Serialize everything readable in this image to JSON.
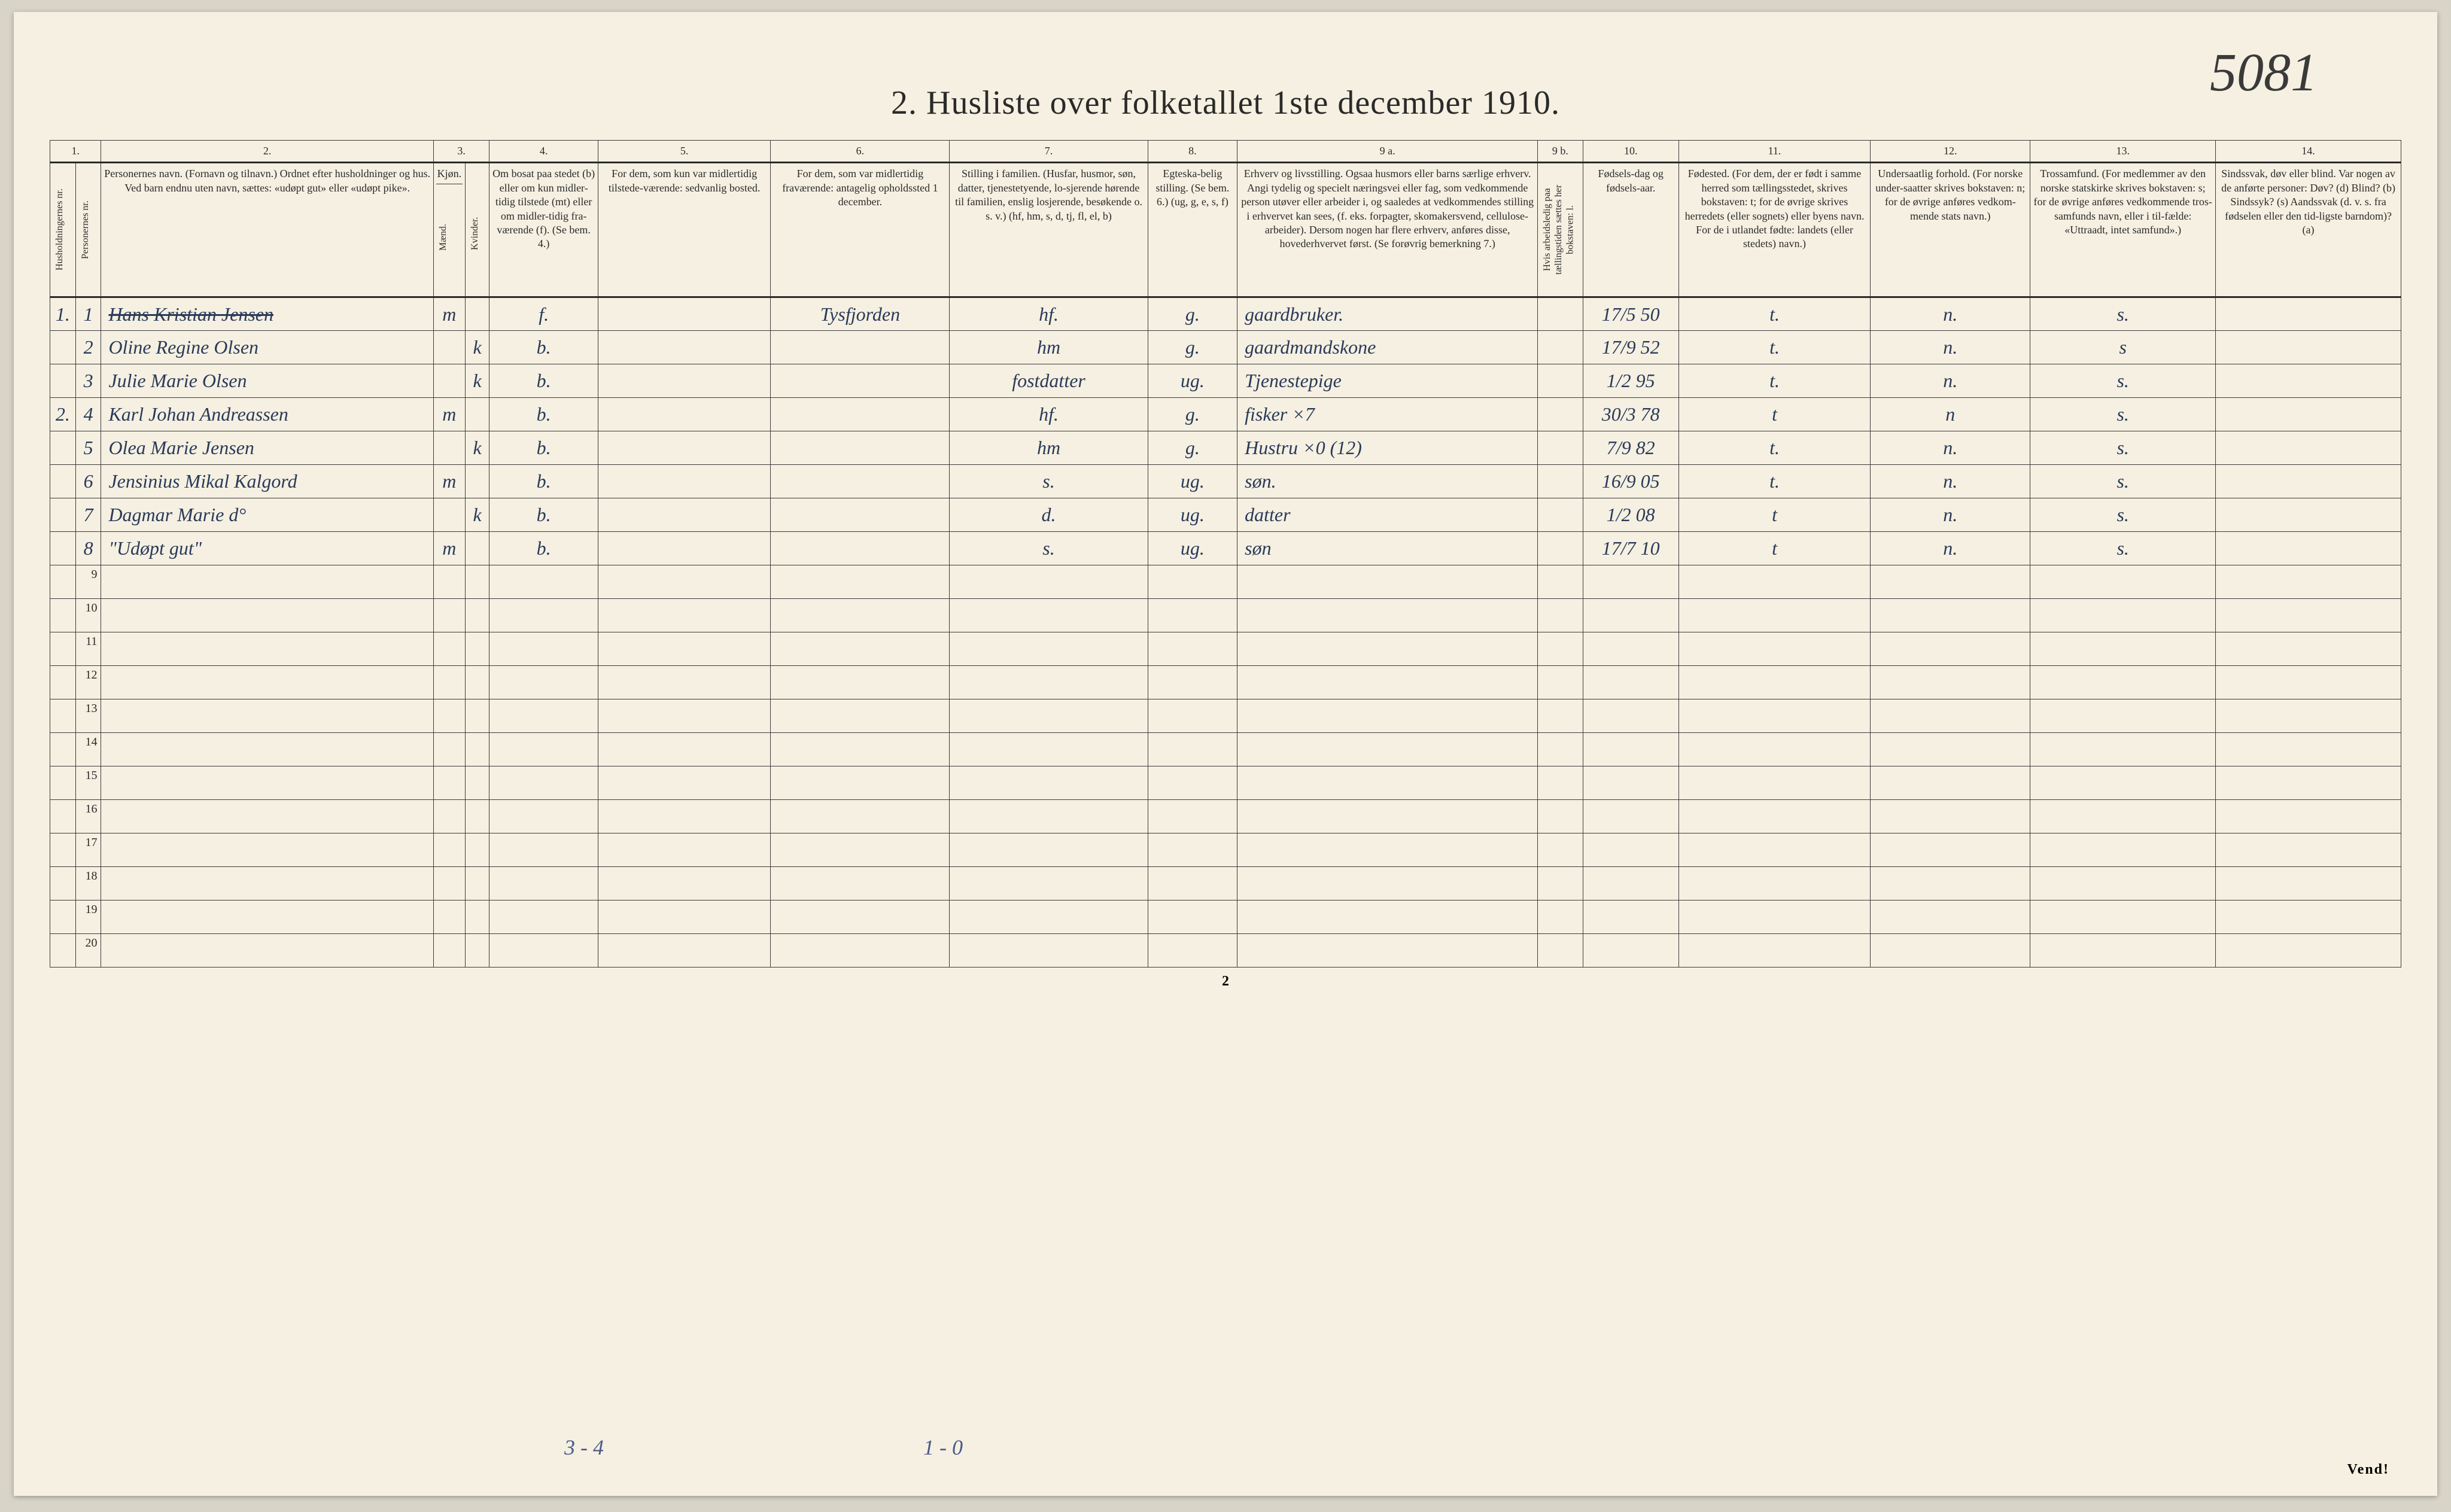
{
  "handwritten_corner": "5081",
  "title": "2.  Husliste over folketallet 1ste december 1910.",
  "col_numbers": [
    "1.",
    "2.",
    "3.",
    "4.",
    "5.",
    "6.",
    "7.",
    "8.",
    "9 a.",
    "9 b.",
    "10.",
    "11.",
    "12.",
    "13.",
    "14."
  ],
  "headers": {
    "c1a": "Husholdningernes nr.",
    "c1b": "Personernes nr.",
    "c2": "Personernes navn.\n(Fornavn og tilnavn.)\nOrdnet efter husholdninger og hus.\nVed barn endnu uten navn, sættes: «udøpt gut» eller «udøpt pike».",
    "c3a": "Mænd.",
    "c3b": "Kvinder.",
    "c3_top": "Kjøn.",
    "c4": "Om bosat paa stedet (b) eller om kun midler-tidig tilstede (mt) eller om midler-tidig fra-værende (f). (Se bem. 4.)",
    "c5": "For dem, som kun var midlertidig tilstede-værende:\nsedvanlig bosted.",
    "c6": "For dem, som var midlertidig fraværende:\nantagelig opholdssted 1 december.",
    "c7": "Stilling i familien.\n(Husfar, husmor, søn, datter, tjenestetyende, lo-sjerende hørende til familien, enslig losjerende, besøkende o. s. v.)\n(hf, hm, s, d, tj, fl, el, b)",
    "c8": "Egteska-belig stilling.\n(Se bem. 6.)\n(ug, g, e, s, f)",
    "c9a": "Erhverv og livsstilling.\nOgsaa husmors eller barns særlige erhverv. Angi tydelig og specielt næringsvei eller fag, som vedkommende person utøver eller arbeider i, og saaledes at vedkommendes stilling i erhvervet kan sees, (f. eks. forpagter, skomakersvend, cellulose-arbeider). Dersom nogen har flere erhverv, anføres disse, hovederhvervet først.\n(Se forøvrig bemerkning 7.)",
    "c9b": "Hvis arbeidsledig paa tællingstiden sættes her bokstaven: l.",
    "c10": "Fødsels-dag og fødsels-aar.",
    "c11": "Fødested.\n(For dem, der er født i samme herred som tællingsstedet, skrives bokstaven: t; for de øvrige skrives herredets (eller sognets) eller byens navn. For de i utlandet fødte: landets (eller stedets) navn.)",
    "c12": "Undersaatlig forhold.\n(For norske under-saatter skrives bokstaven: n; for de øvrige anføres vedkom-mende stats navn.)",
    "c13": "Trossamfund.\n(For medlemmer av den norske statskirke skrives bokstaven: s; for de øvrige anføres vedkommende tros-samfunds navn, eller i til-fælde: «Uttraadt, intet samfund».)",
    "c14": "Sindssvak, døv eller blind.\nVar nogen av de anførte personer:\nDøv? (d)\nBlind? (b)\nSindssyk? (s)\nAandssvak (d. v. s. fra fødselen eller den tid-ligste barndom)? (a)"
  },
  "rows": [
    {
      "hh": "1.",
      "pn": "1",
      "name": "Hans Kristian Jensen",
      "m": "m",
      "k": "",
      "res": "f.",
      "temp": "",
      "away": "Tysfjorden",
      "fam": "hf.",
      "marital": "g.",
      "occ": "gaardbruker.",
      "ledig": "",
      "birth": "17/5 50",
      "place": "t.",
      "nat": "n.",
      "faith": "s.",
      "disab": ""
    },
    {
      "hh": "",
      "pn": "2",
      "name": "Oline Regine Olsen",
      "m": "",
      "k": "k",
      "res": "b.",
      "temp": "",
      "away": "",
      "fam": "hm",
      "marital": "g.",
      "occ": "gaardmandskone",
      "ledig": "",
      "birth": "17/9 52",
      "place": "t.",
      "nat": "n.",
      "faith": "s",
      "disab": ""
    },
    {
      "hh": "",
      "pn": "3",
      "name": "Julie Marie Olsen",
      "m": "",
      "k": "k",
      "res": "b.",
      "temp": "",
      "away": "",
      "fam": "fostdatter",
      "marital": "ug.",
      "occ": "Tjenestepige",
      "ledig": "",
      "birth": "1/2 95",
      "place": "t.",
      "nat": "n.",
      "faith": "s.",
      "disab": ""
    },
    {
      "hh": "2.",
      "pn": "4",
      "name": "Karl Johan Andreassen",
      "m": "m",
      "k": "",
      "res": "b.",
      "temp": "",
      "away": "",
      "fam": "hf.",
      "marital": "g.",
      "occ": "fisker ×7",
      "ledig": "",
      "birth": "30/3 78",
      "place": "t",
      "nat": "n",
      "faith": "s.",
      "disab": ""
    },
    {
      "hh": "",
      "pn": "5",
      "name": "Olea Marie Jensen",
      "m": "",
      "k": "k",
      "res": "b.",
      "temp": "",
      "away": "",
      "fam": "hm",
      "marital": "g.",
      "occ": "Hustru ×0 (12)",
      "ledig": "",
      "birth": "7/9 82",
      "place": "t.",
      "nat": "n.",
      "faith": "s.",
      "disab": ""
    },
    {
      "hh": "",
      "pn": "6",
      "name": "Jensinius Mikal Kalgord",
      "m": "m",
      "k": "",
      "res": "b.",
      "temp": "",
      "away": "",
      "fam": "s.",
      "marital": "ug.",
      "occ": "søn.",
      "ledig": "",
      "birth": "16/9 05",
      "place": "t.",
      "nat": "n.",
      "faith": "s.",
      "disab": ""
    },
    {
      "hh": "",
      "pn": "7",
      "name": "Dagmar Marie  d°",
      "m": "",
      "k": "k",
      "res": "b.",
      "temp": "",
      "away": "",
      "fam": "d.",
      "marital": "ug.",
      "occ": "datter",
      "ledig": "",
      "birth": "1/2 08",
      "place": "t",
      "nat": "n.",
      "faith": "s.",
      "disab": ""
    },
    {
      "hh": "",
      "pn": "8",
      "name": "\"Udøpt gut\"",
      "m": "m",
      "k": "",
      "res": "b.",
      "temp": "",
      "away": "",
      "fam": "s.",
      "marital": "ug.",
      "occ": "søn",
      "ledig": "",
      "birth": "17/7 10",
      "place": "t",
      "nat": "n.",
      "faith": "s.",
      "disab": ""
    }
  ],
  "row_labels_empty": [
    "9",
    "10",
    "11",
    "12",
    "13",
    "14",
    "15",
    "16",
    "17",
    "18",
    "19",
    "20"
  ],
  "bottom_left": "3 - 4",
  "bottom_mid": "1 - 0",
  "page_num": "2",
  "vend": "Vend!",
  "colors": {
    "paper": "#f5f0e1",
    "ink": "#2a2a2a",
    "handwriting": "#2a3a5a",
    "pencil": "#4a5a8a",
    "border": "#3a3a3a"
  }
}
